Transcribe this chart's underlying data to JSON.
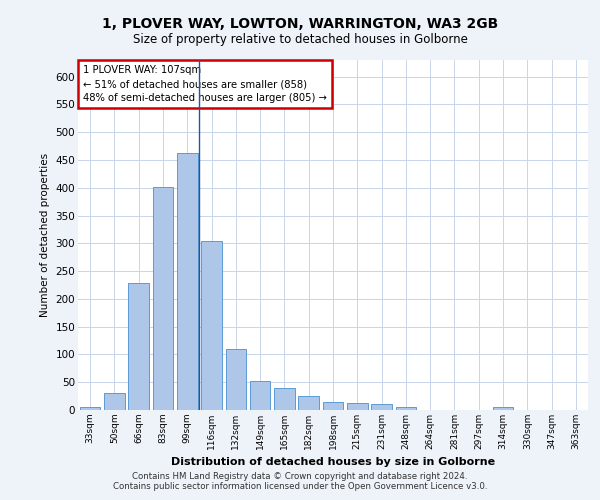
{
  "title": "1, PLOVER WAY, LOWTON, WARRINGTON, WA3 2GB",
  "subtitle": "Size of property relative to detached houses in Golborne",
  "xlabel": "Distribution of detached houses by size in Golborne",
  "ylabel": "Number of detached properties",
  "footer_line1": "Contains HM Land Registry data © Crown copyright and database right 2024.",
  "footer_line2": "Contains public sector information licensed under the Open Government Licence v3.0.",
  "categories": [
    "33sqm",
    "50sqm",
    "66sqm",
    "83sqm",
    "99sqm",
    "116sqm",
    "132sqm",
    "149sqm",
    "165sqm",
    "182sqm",
    "198sqm",
    "215sqm",
    "231sqm",
    "248sqm",
    "264sqm",
    "281sqm",
    "297sqm",
    "314sqm",
    "330sqm",
    "347sqm",
    "363sqm"
  ],
  "values": [
    5,
    30,
    228,
    402,
    463,
    305,
    110,
    53,
    39,
    26,
    14,
    12,
    10,
    6,
    0,
    0,
    0,
    5,
    0,
    0,
    0
  ],
  "bar_color": "#aec6e8",
  "bar_edge_color": "#5b9bd5",
  "annotation_text_line1": "1 PLOVER WAY: 107sqm",
  "annotation_text_line2": "← 51% of detached houses are smaller (858)",
  "annotation_text_line3": "48% of semi-detached houses are larger (805) →",
  "annotation_box_color": "#ffffff",
  "annotation_border_color": "#cc0000",
  "ylim": [
    0,
    630
  ],
  "yticks": [
    0,
    50,
    100,
    150,
    200,
    250,
    300,
    350,
    400,
    450,
    500,
    550,
    600
  ],
  "bg_color": "#eef2f9",
  "plot_bg_color": "#ffffff",
  "grid_color": "#c8d4e8"
}
